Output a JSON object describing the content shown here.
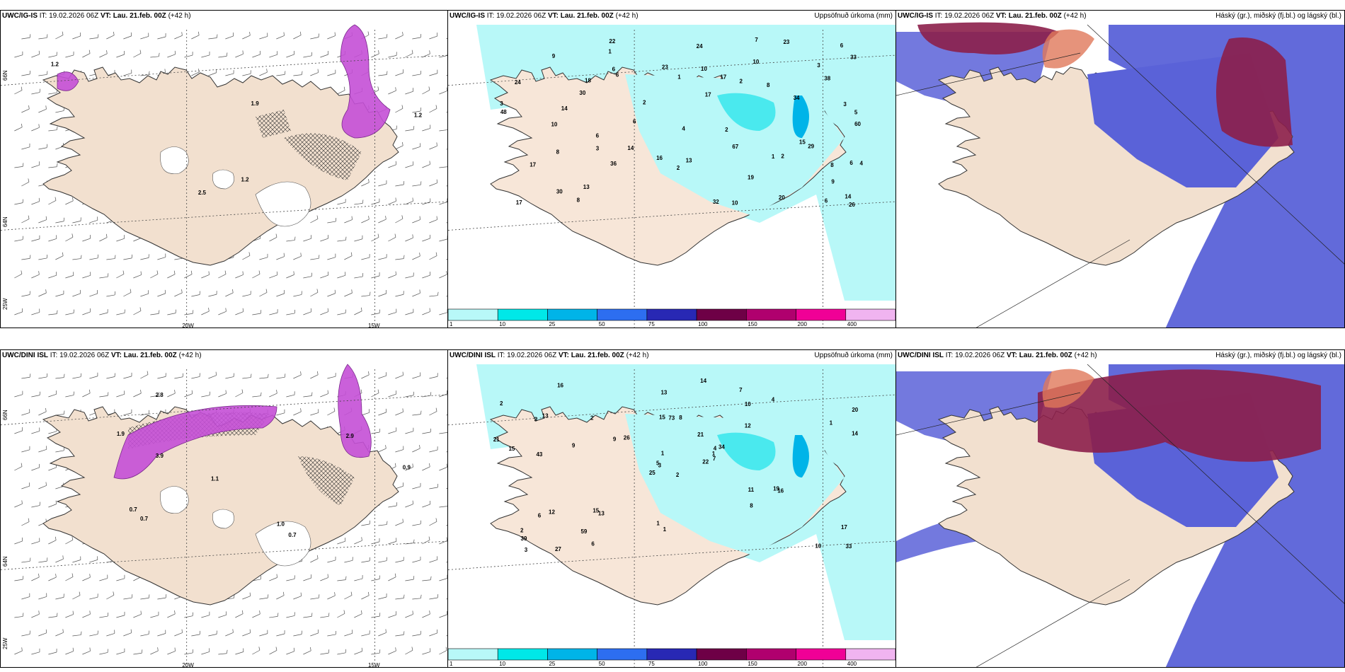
{
  "row1": {
    "p1": {
      "model": "UWC/IG-IS",
      "it_label": "IT:",
      "it_value": "19.02.2026 06Z",
      "vt_label": "VT:",
      "vt_value": "Lau. 21.feb. 00Z",
      "lead": "(+42 h)",
      "right_title": ""
    },
    "p2": {
      "model": "UWC/IG-IS",
      "it_label": "IT:",
      "it_value": "19.02.2026 06Z",
      "vt_label": "VT:",
      "vt_value": "Lau. 21.feb. 00Z",
      "lead": "(+42 h)",
      "right_title": "Uppsöfnuð úrkoma (mm)"
    },
    "p3": {
      "model": "UWC/IG-IS",
      "it_label": "IT:",
      "it_value": "19.02.2026 06Z",
      "vt_label": "VT:",
      "vt_value": "Lau. 21.feb. 00Z",
      "lead": "(+42 h)",
      "right_title": "Háský (gr.), miðský (fj.bl.) og lágský (bl.)"
    }
  },
  "row2": {
    "p1": {
      "model": "UWC/DINI ISL",
      "it_label": "IT:",
      "it_value": "19.02.2026 06Z",
      "vt_label": "VT:",
      "vt_value": "Lau. 21.feb. 00Z",
      "lead": "(+42 h)",
      "right_title": ""
    },
    "p2": {
      "model": "UWC/DINI ISL",
      "it_label": "IT:",
      "it_value": "19.02.2026 06Z",
      "vt_label": "VT:",
      "vt_value": "Lau. 21.feb. 00Z",
      "lead": "(+42 h)",
      "right_title": "Uppsöfnuð úrkoma (mm)"
    },
    "p3": {
      "model": "UWC/DINI ISL",
      "it_label": "IT:",
      "it_value": "19.02.2026 06Z",
      "vt_label": "VT:",
      "vt_value": "Lau. 21.feb. 00Z",
      "lead": "(+42 h)",
      "right_title": "Háský (gr.), miðský (fj.bl.) og lágský (bl.)"
    }
  },
  "axis_labels": {
    "lat66": "66N",
    "lat64": "64N",
    "lon25": "25W",
    "lon20": "20W",
    "lon15": "15W"
  },
  "legend": {
    "ticks": [
      "1",
      "10",
      "25",
      "50",
      "75",
      "100",
      "150",
      "200",
      "400"
    ],
    "colors": [
      "#b8f8f8",
      "#00e8e8",
      "#00b4e8",
      "#2d6ef0",
      "#2828b4",
      "#6e0046",
      "#b0006e",
      "#f00096",
      "#f0b4f0"
    ]
  },
  "precip_labels_top": [
    "6",
    "3",
    "2",
    "5",
    "6",
    "6",
    "14",
    "7",
    "8",
    "3",
    "30",
    "29",
    "34",
    "36",
    "17",
    "4",
    "6",
    "3",
    "22",
    "23",
    "14",
    "10",
    "30",
    "8",
    "17",
    "23",
    "17",
    "19",
    "32",
    "33",
    "8",
    "26",
    "10",
    "24",
    "14",
    "48",
    "60",
    "67",
    "38",
    "15",
    "10",
    "24",
    "16",
    "13",
    "9",
    "9",
    "17",
    "8",
    "6",
    "13",
    "6",
    "18",
    "20",
    "10",
    "3",
    "2",
    "1",
    "1",
    "2",
    "2",
    "4",
    "6",
    "2",
    "1"
  ],
  "precip_labels_bottom": [
    "2",
    "3",
    "3",
    "2",
    "4",
    "13",
    "7",
    "8",
    "10",
    "22",
    "16",
    "33",
    "43",
    "20",
    "25",
    "12",
    "27",
    "15",
    "21",
    "12",
    "26",
    "39",
    "59",
    "73",
    "34",
    "16",
    "13",
    "13",
    "15",
    "11",
    "14",
    "5",
    "1",
    "1",
    "2",
    "4",
    "15",
    "10",
    "17",
    "19",
    "14",
    "9",
    "9",
    "8",
    "6",
    "21",
    "1",
    "3",
    "1",
    "7",
    "6",
    "1",
    "2"
  ],
  "top_left_labels": [
    "2.5",
    "1.2",
    "1.9",
    "1.2",
    "1.2"
  ],
  "bottom_left_labels": [
    "0.7",
    "2.8",
    "0.7",
    "1.9",
    "2.9",
    "1.0",
    "0.9",
    "3.9",
    "1.1",
    "0.7"
  ]
}
